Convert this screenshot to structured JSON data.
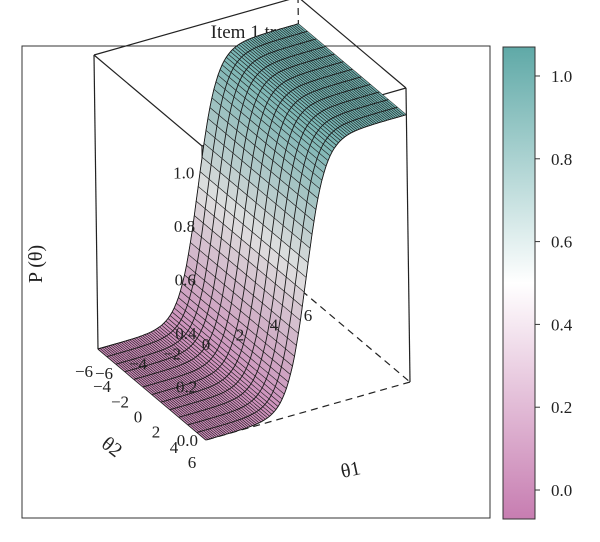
{
  "chart_data": {
    "type": "surface3d",
    "title": "Item 1 trace",
    "x_label": "θ1",
    "y_label": "θ2",
    "z_label": "P (θ)",
    "x_range": [
      -6,
      6
    ],
    "y_range": [
      -6,
      6
    ],
    "z_range": [
      0,
      1.1
    ],
    "x_ticks": [
      "−6",
      "−4",
      "−2",
      "0",
      "2",
      "4",
      "6"
    ],
    "y_ticks": [
      "6",
      "4",
      "2",
      "0",
      "−2",
      "−4",
      "−6"
    ],
    "z_ticks": [
      "0.0",
      "0.2",
      "0.4",
      "0.6",
      "0.8",
      "1.0"
    ],
    "surface": "logistic item characteristic surface: P rises from 0 to 1 along θ1, constant along θ2",
    "colormap": {
      "low_color": "#c77db1",
      "mid_color": "#ffffff",
      "high_color": "#5fa9a7",
      "range": [
        -0.07,
        1.07
      ],
      "ticks": [
        "0.0",
        "0.2",
        "0.4",
        "0.6",
        "0.8",
        "1.0"
      ]
    }
  }
}
